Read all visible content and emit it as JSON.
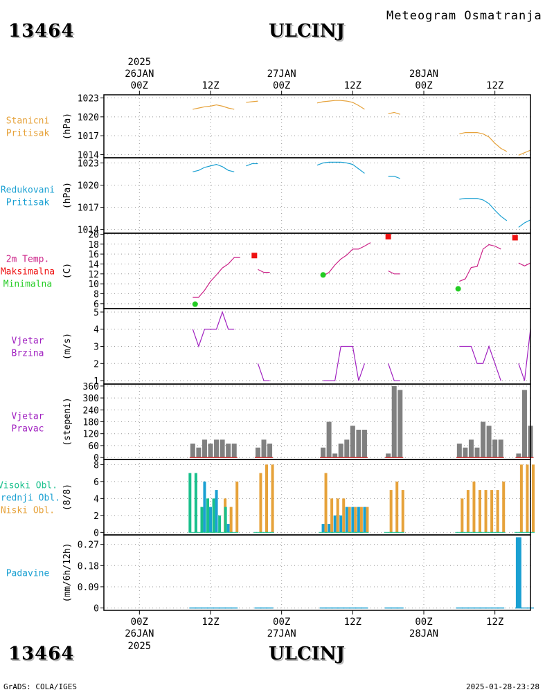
{
  "header": {
    "station_id": "13464",
    "station_name": "ULCINJ",
    "subtitle": "Meteogram Osmatranja",
    "year": "2025"
  },
  "footer": {
    "station_id": "13464",
    "station_name": "ULCINJ",
    "credit": "GrADS: COLA/IGES",
    "timestamp": "2025-01-28-23:28",
    "year": "2025"
  },
  "time_axis": {
    "hours_range": [
      -6,
      66
    ],
    "ticks": [
      {
        "h": 0,
        "label": "00Z"
      },
      {
        "h": 12,
        "label": "12Z"
      },
      {
        "h": 24,
        "label": "00Z"
      },
      {
        "h": 36,
        "label": "12Z"
      },
      {
        "h": 48,
        "label": "00Z"
      },
      {
        "h": 60,
        "label": "12Z"
      }
    ],
    "date_labels": [
      {
        "h": 0,
        "label": "26JAN"
      },
      {
        "h": 24,
        "label": "27JAN"
      },
      {
        "h": 48,
        "label": "28JAN"
      }
    ],
    "top_year_hour": 0
  },
  "panels": [
    {
      "id": "p1",
      "labels": [
        {
          "text": "Stanicni",
          "color": "#e6a23a"
        },
        {
          "text": "Pritisak",
          "color": "#e6a23a"
        }
      ],
      "unit": "(hPa)",
      "ylim": [
        1013.5,
        1023.5
      ],
      "ticks": [
        1014,
        1017,
        1020,
        1023
      ]
    },
    {
      "id": "p2",
      "labels": [
        {
          "text": "Redukovani",
          "color": "#1aa0d2"
        },
        {
          "text": "Pritisak",
          "color": "#1aa0d2"
        }
      ],
      "unit": "(hPa)",
      "ylim": [
        1013.5,
        1023.7
      ],
      "ticks": [
        1014,
        1017,
        1020,
        1023
      ]
    },
    {
      "id": "p3",
      "labels": [
        {
          "text": "2m Temp.",
          "color": "#cc2288"
        },
        {
          "text": "Maksimalna",
          "color": "#ee1111"
        },
        {
          "text": "Minimalna",
          "color": "#22cc22"
        }
      ],
      "unit": "(C)",
      "ylim": [
        5,
        20.2
      ],
      "ticks": [
        6,
        8,
        10,
        12,
        14,
        16,
        18,
        20
      ]
    },
    {
      "id": "p4",
      "labels": [
        {
          "text": "Vjetar",
          "color": "#a020c0"
        },
        {
          "text": "Brzina",
          "color": "#a020c0"
        }
      ],
      "unit": "(m/s)",
      "ylim": [
        0.8,
        5.2
      ],
      "ticks": [
        1,
        2,
        3,
        4,
        5
      ]
    },
    {
      "id": "p5",
      "labels": [
        {
          "text": "Vjetar",
          "color": "#a020c0"
        },
        {
          "text": "Pravac",
          "color": "#a020c0"
        }
      ],
      "unit": "(stepeni)",
      "ylim": [
        -10,
        370
      ],
      "ticks": [
        0,
        60,
        120,
        180,
        240,
        300,
        360
      ]
    },
    {
      "id": "p6",
      "labels": [
        {
          "text": "Visoki Obl.",
          "color": "#19c08c"
        },
        {
          "text": "Srednji Obl.",
          "color": "#1aa0d2"
        },
        {
          "text": "Niski Obl.",
          "color": "#e6a23a"
        }
      ],
      "unit": "(8/8)",
      "ylim": [
        -0.3,
        8.6
      ],
      "ticks": [
        0,
        2,
        4,
        6,
        8
      ]
    },
    {
      "id": "p7",
      "labels": [
        {
          "text": "Padavine",
          "color": "#1aa0d2"
        }
      ],
      "unit": "(mm/6h/12h)",
      "ylim": [
        -0.01,
        0.31
      ],
      "ticks": [
        0,
        0.09,
        0.18,
        0.27
      ],
      "tick_labels": [
        "0",
        "0.09",
        "0.18",
        "0.27"
      ]
    }
  ],
  "chart_data": [
    {
      "type": "line",
      "panel": "p1",
      "name": "Stanicni Pritisak",
      "color": "#e6a23a",
      "segments": [
        [
          [
            9,
            1021.2
          ],
          [
            10,
            1021.4
          ],
          [
            11,
            1021.6
          ],
          [
            12,
            1021.7
          ],
          [
            13,
            1021.9
          ],
          [
            14,
            1021.7
          ],
          [
            15,
            1021.4
          ],
          [
            16,
            1021.2
          ]
        ],
        [
          [
            18,
            1022.3
          ],
          [
            19,
            1022.4
          ],
          [
            20,
            1022.5
          ]
        ],
        [
          [
            30,
            1022.2
          ],
          [
            31,
            1022.4
          ],
          [
            32,
            1022.5
          ],
          [
            33,
            1022.6
          ],
          [
            34,
            1022.6
          ],
          [
            35,
            1022.5
          ],
          [
            36,
            1022.3
          ],
          [
            37,
            1021.8
          ],
          [
            38,
            1021.2
          ]
        ],
        [
          [
            42,
            1020.5
          ],
          [
            43,
            1020.7
          ],
          [
            44,
            1020.4
          ]
        ],
        [
          [
            54,
            1017.3
          ],
          [
            55,
            1017.5
          ],
          [
            56,
            1017.5
          ],
          [
            57,
            1017.5
          ],
          [
            58,
            1017.3
          ],
          [
            59,
            1016.8
          ],
          [
            60,
            1015.8
          ],
          [
            61,
            1015.0
          ],
          [
            62,
            1014.5
          ]
        ],
        [
          [
            64,
            1013.9
          ],
          [
            65,
            1014.3
          ],
          [
            66,
            1014.7
          ]
        ]
      ]
    },
    {
      "type": "line",
      "panel": "p2",
      "name": "Redukovani Pritisak",
      "color": "#1aa0d2",
      "segments": [
        [
          [
            9,
            1021.8
          ],
          [
            10,
            1022.0
          ],
          [
            11,
            1022.4
          ],
          [
            12,
            1022.6
          ],
          [
            13,
            1022.8
          ],
          [
            14,
            1022.5
          ],
          [
            15,
            1022.0
          ],
          [
            16,
            1021.8
          ]
        ],
        [
          [
            18,
            1022.6
          ],
          [
            19,
            1022.9
          ],
          [
            20,
            1022.9
          ]
        ],
        [
          [
            30,
            1022.7
          ],
          [
            31,
            1023.0
          ],
          [
            32,
            1023.1
          ],
          [
            33,
            1023.1
          ],
          [
            34,
            1023.1
          ],
          [
            35,
            1023.0
          ],
          [
            36,
            1022.8
          ],
          [
            37,
            1022.2
          ],
          [
            38,
            1021.6
          ]
        ],
        [
          [
            42,
            1021.2
          ],
          [
            43,
            1021.2
          ],
          [
            44,
            1020.9
          ]
        ],
        [
          [
            54,
            1018.1
          ],
          [
            55,
            1018.2
          ],
          [
            56,
            1018.2
          ],
          [
            57,
            1018.2
          ],
          [
            58,
            1018.0
          ],
          [
            59,
            1017.5
          ],
          [
            60,
            1016.6
          ],
          [
            61,
            1015.8
          ],
          [
            62,
            1015.2
          ]
        ],
        [
          [
            64,
            1014.3
          ],
          [
            65,
            1014.9
          ],
          [
            66,
            1015.3
          ]
        ]
      ]
    },
    {
      "type": "line",
      "panel": "p3",
      "name": "2m Temp.",
      "color": "#cc2288",
      "segments": [
        [
          [
            9,
            7.3
          ],
          [
            10,
            7.3
          ],
          [
            11,
            8.7
          ],
          [
            12,
            10.5
          ],
          [
            13,
            11.8
          ],
          [
            14,
            13.2
          ],
          [
            15,
            14.0
          ],
          [
            16,
            15.3
          ],
          [
            17,
            15.3
          ]
        ],
        [
          [
            20,
            12.9
          ],
          [
            21,
            12.3
          ],
          [
            22,
            12.3
          ]
        ],
        [
          [
            31,
            11.6
          ],
          [
            32,
            12.3
          ],
          [
            33,
            13.8
          ],
          [
            34,
            15.0
          ],
          [
            35,
            15.8
          ],
          [
            36,
            17.0
          ],
          [
            37,
            17.0
          ],
          [
            38,
            17.6
          ],
          [
            39,
            18.3
          ]
        ],
        [
          [
            42,
            12.6
          ],
          [
            43,
            12.0
          ],
          [
            44,
            12.0
          ]
        ],
        [
          [
            54,
            10.5
          ],
          [
            55,
            11.0
          ],
          [
            56,
            13.3
          ],
          [
            57,
            13.5
          ],
          [
            58,
            17.0
          ],
          [
            59,
            17.9
          ],
          [
            60,
            17.6
          ],
          [
            61,
            17.0
          ]
        ],
        [
          [
            64,
            14.2
          ],
          [
            65,
            13.6
          ],
          [
            66,
            14.2
          ]
        ]
      ],
      "maximum_points": [
        [
          19.4,
          15.7
        ],
        [
          42.0,
          19.5
        ],
        [
          63.4,
          19.3
        ]
      ],
      "minimum_points": [
        [
          9.4,
          5.9
        ],
        [
          31.0,
          11.8
        ],
        [
          53.8,
          9.0
        ]
      ],
      "max_color": "#ee1111",
      "min_color": "#22cc22"
    },
    {
      "type": "line",
      "panel": "p4",
      "name": "Vjetar Brzina",
      "color": "#a020c0",
      "segments": [
        [
          [
            9,
            4
          ],
          [
            10,
            3
          ],
          [
            11,
            4
          ],
          [
            12,
            4
          ],
          [
            13,
            4
          ],
          [
            14,
            5
          ],
          [
            15,
            4
          ],
          [
            16,
            4
          ]
        ],
        [
          [
            20,
            2
          ],
          [
            21,
            1
          ],
          [
            22,
            1
          ]
        ],
        [
          [
            31,
            1
          ],
          [
            32,
            1
          ],
          [
            33,
            1
          ],
          [
            34,
            3
          ],
          [
            35,
            3
          ],
          [
            36,
            3
          ],
          [
            37,
            1
          ],
          [
            38,
            2
          ]
        ],
        [
          [
            42,
            2
          ],
          [
            43,
            1
          ],
          [
            44,
            1
          ]
        ],
        [
          [
            54,
            3
          ],
          [
            55,
            3
          ],
          [
            56,
            3
          ],
          [
            57,
            2
          ],
          [
            58,
            2
          ],
          [
            59,
            3
          ],
          [
            60,
            2
          ],
          [
            61,
            1
          ]
        ],
        [
          [
            64,
            2
          ],
          [
            65,
            1
          ],
          [
            66,
            4
          ]
        ]
      ]
    },
    {
      "type": "bar",
      "panel": "p5",
      "name": "Vjetar Pravac",
      "color": "#808080",
      "x": [
        9,
        10,
        11,
        12,
        13,
        14,
        15,
        16,
        20,
        21,
        22,
        31,
        32,
        33,
        34,
        35,
        36,
        37,
        38,
        42,
        43,
        44,
        54,
        55,
        56,
        57,
        58,
        59,
        60,
        61,
        64,
        65,
        66
      ],
      "values": [
        70,
        50,
        90,
        70,
        90,
        90,
        70,
        70,
        50,
        90,
        70,
        50,
        180,
        20,
        70,
        90,
        160,
        140,
        140,
        20,
        360,
        340,
        70,
        50,
        90,
        50,
        180,
        160,
        90,
        90,
        20,
        340,
        160
      ],
      "calm_line_color": "#cc3333"
    },
    {
      "type": "bar",
      "panel": "p6",
      "name": "Oblacnost",
      "x": [
        9,
        10,
        11,
        12,
        13,
        14,
        15,
        16,
        20,
        21,
        22,
        31,
        32,
        33,
        34,
        35,
        36,
        37,
        38,
        42,
        43,
        44,
        54,
        55,
        56,
        57,
        58,
        59,
        60,
        61,
        64,
        65,
        66
      ],
      "series": [
        {
          "name": "Visoki Obl.",
          "color": "#19c08c",
          "values": [
            7,
            7,
            3,
            4,
            4,
            2,
            3,
            0,
            0,
            0,
            0,
            0,
            0,
            0,
            0,
            0,
            0,
            0,
            0,
            0,
            0,
            0,
            0,
            0,
            0,
            0,
            0,
            0,
            0,
            0,
            0,
            0,
            0
          ]
        },
        {
          "name": "Srednji Obl.",
          "color": "#1aa0d2",
          "values": [
            0,
            0,
            6,
            3,
            5,
            0,
            1,
            0,
            0,
            0,
            0,
            1,
            1,
            2,
            2,
            3,
            3,
            3,
            3,
            0,
            0,
            0,
            0,
            0,
            0,
            0,
            0,
            0,
            0,
            0,
            0,
            0,
            0
          ]
        },
        {
          "name": "Niski Obl.",
          "color": "#e6a23a",
          "values": [
            0,
            0,
            0,
            0,
            0,
            4,
            3,
            6,
            7,
            8,
            8,
            7,
            4,
            4,
            4,
            3,
            3,
            3,
            3,
            5,
            6,
            5,
            4,
            5,
            6,
            5,
            5,
            5,
            5,
            6,
            8,
            8,
            8
          ]
        }
      ]
    },
    {
      "type": "bar",
      "panel": "p7",
      "name": "Padavine",
      "color": "#1aa0d2",
      "x": [
        9,
        10,
        11,
        12,
        13,
        14,
        15,
        16,
        20,
        21,
        22,
        31,
        32,
        33,
        34,
        35,
        36,
        37,
        38,
        42,
        43,
        44,
        54,
        55,
        56,
        57,
        58,
        59,
        60,
        61,
        64,
        65,
        66
      ],
      "values": [
        0,
        0,
        0,
        0,
        0,
        0,
        0,
        0,
        0,
        0,
        0,
        0,
        0,
        0,
        0,
        0,
        0,
        0,
        0,
        0,
        0,
        0,
        0,
        0,
        0,
        0,
        0,
        0,
        0,
        0,
        0.3,
        0,
        0
      ]
    }
  ]
}
